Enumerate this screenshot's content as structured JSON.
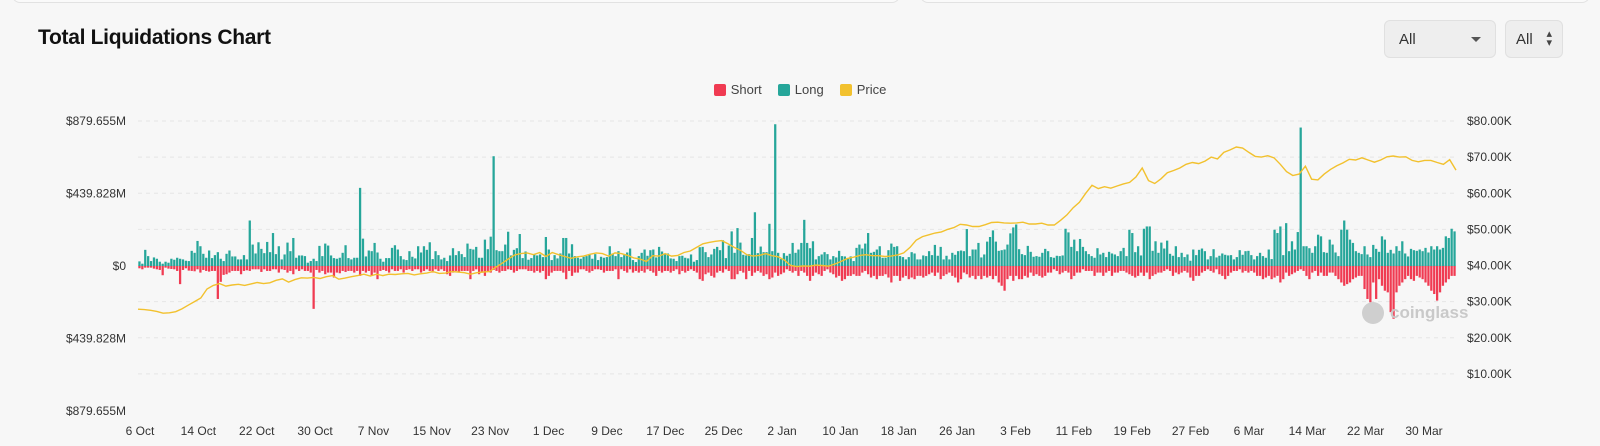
{
  "title": "Total Liquidations Chart",
  "controls": {
    "time_range": "All",
    "unit": "All"
  },
  "legend": [
    {
      "name": "Short",
      "color": "#f03b52"
    },
    {
      "name": "Long",
      "color": "#26a69a"
    },
    {
      "name": "Price",
      "color": "#f2c12e"
    }
  ],
  "watermark": "coinglass",
  "chart_data": {
    "type": "bar",
    "title": "Total Liquidations Chart",
    "left_axis": {
      "range": [
        -879.655,
        879.655
      ],
      "ticks": [
        {
          "value": 879.655,
          "label": "$879.655M"
        },
        {
          "value": 439.828,
          "label": "$439.828M"
        },
        {
          "value": 0,
          "label": "$0"
        },
        {
          "value": -439.828,
          "label": "$439.828M"
        },
        {
          "value": -879.655,
          "label": "$879.655M"
        }
      ]
    },
    "right_axis": {
      "range": [
        0,
        80
      ],
      "ticks": [
        {
          "value": 80,
          "label": "$80.00K"
        },
        {
          "value": 70,
          "label": "$70.00K"
        },
        {
          "value": 60,
          "label": "$60.00K"
        },
        {
          "value": 50,
          "label": "$50.00K"
        },
        {
          "value": 40,
          "label": "$40.00K"
        },
        {
          "value": 30,
          "label": "$30.00K"
        },
        {
          "value": 20,
          "label": "$20.00K"
        },
        {
          "value": 10,
          "label": "$10.00K"
        }
      ]
    },
    "x_tick_labels": [
      "6 Oct",
      "14 Oct",
      "22 Oct",
      "30 Oct",
      "7 Nov",
      "15 Nov",
      "23 Nov",
      "1 Dec",
      "9 Dec",
      "17 Dec",
      "25 Dec",
      "2 Jan",
      "10 Jan",
      "18 Jan",
      "26 Jan",
      "3 Feb",
      "11 Feb",
      "19 Feb",
      "27 Feb",
      "6 Mar",
      "14 Mar",
      "22 Mar",
      "30 Mar"
    ],
    "series": [
      {
        "name": "Long",
        "color": "#26a69a",
        "values": [
          28,
          14,
          98,
          60,
          30,
          52,
          44,
          26,
          14,
          26,
          20,
          44,
          38,
          50,
          44,
          40,
          32,
          30,
          92,
          80,
          152,
          120,
          74,
          50,
          94,
          48,
          66,
          84,
          44,
          30,
          74,
          94,
          58,
          58,
          40,
          40,
          66,
          40,
          276,
          130,
          76,
          144,
          104,
          78,
          146,
          84,
          200,
          72,
          120,
          40,
          70,
          142,
          90,
          170,
          50,
          64,
          64,
          60,
          20,
          30,
          44,
          30,
          122,
          60,
          136,
          124,
          64,
          48,
          44,
          50,
          80,
          126,
          48,
          40,
          50,
          50,
          474,
          166,
          58,
          94,
          90,
          140,
          82,
          44,
          26,
          48,
          48,
          110,
          126,
          100,
          60,
          40,
          36,
          90,
          56,
          46,
          120,
          82,
          120,
          98,
          144,
          42,
          90,
          66,
          40,
          50,
          30,
          64,
          108,
          66,
          90,
          72,
          54,
          136,
          104,
          100,
          116,
          50,
          50,
          160,
          102,
          178,
          666,
          96,
          90,
          90,
          130,
          208,
          64,
          98,
          108,
          194,
          48,
          88,
          38,
          48,
          72,
          64,
          70,
          54,
          176,
          100,
          36,
          66,
          46,
          76,
          170,
          170,
          76,
          132,
          60,
          50,
          44,
          56,
          60,
          70,
          44,
          72,
          36,
          56,
          50,
          54,
          120,
          76,
          60,
          90,
          54,
          66,
          82,
          106,
          36,
          24,
          60,
          80,
          100,
          62,
          96,
          100,
          52,
          116,
          88,
          70,
          76,
          46,
          44,
          30,
          60,
          62,
          50,
          46,
          70,
          26,
          36,
          114,
          116,
          84,
          54,
          70,
          104,
          116,
          96,
          156,
          48,
          124,
          210,
          80,
          230,
          142,
          68,
          64,
          72,
          170,
          326,
          78,
          118,
          84,
          84,
          256,
          90,
          860,
          80,
          42,
          78,
          62,
          74,
          140,
          80,
          100,
          140,
          280,
          140,
          108,
          150,
          40,
          60,
          70,
          84,
          72,
          40,
          60,
          52,
          92,
          60,
          58,
          44,
          58,
          30,
          110,
          130,
          106,
          136,
          200,
          80,
          86,
          100,
          120,
          50,
          50,
          96,
          136,
          116,
          120,
          60,
          54,
          40,
          54,
          84,
          76,
          40,
          40,
          64,
          60,
          90,
          66,
          128,
          62,
          116,
          40,
          62,
          40,
          80,
          68,
          90,
          94,
          90,
          224,
          60,
          100,
          100,
          140,
          52,
          70,
          148,
          176,
          216,
          148,
          92,
          96,
          100,
          130,
          198,
          234,
          252,
          102,
          72,
          66,
          122,
          86,
          56,
          60,
          56,
          80,
          104,
          90,
          54,
          50,
          62,
          60,
          64,
          226,
          204,
          116,
          160,
          90,
          164,
          116,
          90,
          72,
          60,
          50,
          108,
          70,
          80,
          54,
          86,
          76,
          70,
          60,
          90,
          110,
          60,
          220,
          200,
          84,
          120,
          64,
          226,
          240,
          240,
          92,
          150,
          80,
          142,
          106,
          154,
          74,
          62,
          120,
          54,
          80,
          54,
          70,
          32,
          100,
          66,
          98,
          106,
          90,
          40,
          60,
          102,
          52,
          62,
          76,
          68,
          64,
          66,
          40,
          54,
          96,
          68,
          90,
          92,
          66,
          40,
          60,
          80,
          60,
          50,
          100,
          42,
          220,
          200,
          240,
          66,
          260,
          90,
          150,
          100,
          206,
          840,
          120,
          120,
          108,
          80,
          120,
          190,
          180,
          84,
          80,
          160,
          130,
          82,
          60,
          220,
          276,
          220,
          160,
          140,
          90,
          80,
          72,
          120,
          70,
          54,
          128,
          104,
          86,
          180,
          160,
          80,
          98,
          76,
          120,
          92,
          150,
          76,
          58,
          104,
          96,
          92,
          100,
          90,
          110,
          82,
          120,
          100,
          120,
          100,
          110,
          180,
          170,
          226,
          210
        ]
      },
      {
        "name": "Short",
        "color": "#f03b52",
        "values": [
          -14,
          -20,
          -10,
          -10,
          -10,
          -16,
          -20,
          -24,
          -56,
          -10,
          -16,
          -18,
          -20,
          -30,
          -110,
          -24,
          -14,
          -28,
          -30,
          -32,
          -20,
          -40,
          -24,
          -30,
          -34,
          -30,
          -30,
          -200,
          -96,
          -54,
          -50,
          -40,
          -30,
          -30,
          -30,
          -50,
          -30,
          -26,
          -30,
          -20,
          -20,
          -20,
          -36,
          -20,
          -30,
          -30,
          -20,
          -20,
          -40,
          -20,
          -24,
          -40,
          -30,
          -50,
          -20,
          -30,
          -20,
          -30,
          -30,
          -40,
          -260,
          -24,
          -40,
          -30,
          -50,
          -40,
          -40,
          -70,
          -40,
          -44,
          -30,
          -36,
          -30,
          -30,
          -40,
          -30,
          -60,
          -30,
          -40,
          -30,
          -60,
          -40,
          -80,
          -30,
          -24,
          -30,
          -40,
          -20,
          -30,
          -30,
          -20,
          -40,
          -24,
          -20,
          -30,
          -20,
          -20,
          -40,
          -30,
          -20,
          -30,
          -40,
          -20,
          -30,
          -20,
          -30,
          -50,
          -60,
          -40,
          -30,
          -40,
          -30,
          -30,
          -30,
          -80,
          -30,
          -20,
          -50,
          -40,
          -60,
          -30,
          -40,
          -24,
          -30,
          -40,
          -30,
          -30,
          -20,
          -24,
          -40,
          -30,
          -20,
          -20,
          -20,
          -30,
          -30,
          -40,
          -30,
          -40,
          -30,
          -80,
          -60,
          -40,
          -30,
          -30,
          -30,
          -40,
          -80,
          -30,
          -60,
          -40,
          -40,
          -20,
          -20,
          -30,
          -40,
          -30,
          -20,
          -20,
          -24,
          -40,
          -30,
          -30,
          -30,
          -20,
          -80,
          -20,
          -30,
          -40,
          -20,
          -40,
          -30,
          -40,
          -30,
          -40,
          -20,
          -30,
          -40,
          -60,
          -30,
          -40,
          -30,
          -30,
          -40,
          -30,
          -20,
          -50,
          -30,
          -40,
          -30,
          -20,
          -30,
          -40,
          -80,
          -90,
          -50,
          -40,
          -60,
          -70,
          -40,
          -30,
          -40,
          -20,
          -30,
          -80,
          -80,
          -50,
          -30,
          -40,
          -80,
          -30,
          -60,
          -40,
          -30,
          -40,
          -60,
          -50,
          -80,
          -70,
          -40,
          -60,
          -50,
          -40,
          -20,
          -30,
          -40,
          -30,
          -60,
          -30,
          -40,
          -60,
          -90,
          -60,
          -40,
          -50,
          -60,
          -30,
          -20,
          -40,
          -50,
          -70,
          -60,
          -90,
          -80,
          -60,
          -60,
          -50,
          -60,
          -60,
          -40,
          -30,
          -50,
          -70,
          -60,
          -80,
          -60,
          -60,
          -50,
          -70,
          -100,
          -60,
          -60,
          -90,
          -70,
          -60,
          -80,
          -70,
          -80,
          -60,
          -60,
          -70,
          -60,
          -50,
          -40,
          -60,
          -40,
          -80,
          -60,
          -50,
          -40,
          -60,
          -70,
          -100,
          -80,
          -40,
          -50,
          -70,
          -60,
          -80,
          -60,
          -80,
          -60,
          -70,
          -60,
          -80,
          -60,
          -100,
          -120,
          -150,
          -80,
          -60,
          -90,
          -60,
          -80,
          -80,
          -60,
          -70,
          -40,
          -60,
          -50,
          -60,
          -70,
          -60,
          -40,
          -40,
          -20,
          -30,
          -50,
          -40,
          -30,
          -40,
          -80,
          -60,
          -40,
          -40,
          -20,
          -30,
          -30,
          -30,
          -60,
          -40,
          -40,
          -60,
          -40,
          -30,
          -60,
          -40,
          -40,
          -30,
          -30,
          -40,
          -50,
          -60,
          -70,
          -60,
          -40,
          -60,
          -40,
          -80,
          -60,
          -50,
          -40,
          -40,
          -30,
          -20,
          -30,
          -60,
          -40,
          -50,
          -40,
          -30,
          -40,
          -70,
          -90,
          -60,
          -60,
          -40,
          -30,
          -20,
          -30,
          -40,
          -20,
          -50,
          -60,
          -80,
          -60,
          -40,
          -30,
          -30,
          -20,
          -40,
          -30,
          -40,
          -30,
          -40,
          -60,
          -60,
          -80,
          -70,
          -60,
          -80,
          -70,
          -60,
          -100,
          -80,
          -40,
          -60,
          -50,
          -40,
          -30,
          -20,
          -30,
          -60,
          -80,
          -40,
          -30,
          -60,
          -40,
          -60,
          -60,
          -40,
          -40,
          -60,
          -80,
          -100,
          -120,
          -110,
          -100,
          -80,
          -70,
          -60,
          -60,
          -140,
          -200,
          -220,
          -100,
          -200,
          -80,
          -120,
          -150,
          -160,
          -280,
          -320,
          -160,
          -120,
          -100,
          -80,
          -60,
          -80,
          -90,
          -60,
          -70,
          -80,
          -100,
          -120,
          -150,
          -170,
          -210,
          -160,
          -120,
          -100,
          -80,
          -60,
          -60,
          -70,
          -80,
          -90,
          -70,
          -60,
          -80,
          -100,
          -80,
          -60,
          -40,
          -60,
          -80,
          -40,
          -50,
          -60,
          -40,
          -30,
          -50,
          -60,
          -40
        ]
      },
      {
        "name": "Price",
        "color": "#f2c12e",
        "values": [
          27.9,
          27.8,
          27.6,
          27.3,
          26.8,
          26.9,
          27.2,
          28.0,
          29.0,
          30.0,
          31.0,
          33.5,
          34.5,
          35.0,
          34.3,
          34.6,
          34.8,
          34.5,
          34.9,
          35.3,
          35.0,
          35.2,
          35.9,
          36.3,
          35.4,
          36.1,
          36.6,
          36.5,
          36.7,
          36.4,
          36.9,
          37.2,
          36.2,
          36.5,
          36.9,
          37.2,
          37.6,
          37.1,
          37.6,
          37.2,
          37.6,
          37.5,
          37.7,
          37.8,
          37.4,
          37.7,
          37.9,
          38.3,
          37.8,
          37.9,
          38.3,
          38.2,
          38.0,
          37.6,
          38.0,
          38.2,
          38.3,
          39.5,
          40.6,
          41.8,
          42.9,
          43.3,
          43.5,
          43.0,
          43.6,
          42.5,
          43.6,
          43.0,
          42.5,
          42.0,
          42.4,
          42.6,
          43.1,
          43.5,
          43.3,
          42.6,
          43.5,
          43.3,
          42.8,
          42.1,
          41.8,
          41.1,
          42.7,
          42.6,
          43.3,
          42.6,
          42.8,
          43.6,
          44.0,
          45.0,
          46.0,
          46.4,
          46.7,
          46.9,
          46.0,
          45.0,
          44.2,
          43.0,
          42.6,
          42.8,
          43.3,
          42.7,
          42.4,
          41.5,
          40.0,
          39.7,
          39.9,
          39.8,
          40.1,
          40.0,
          39.8,
          40.4,
          41.1,
          41.9,
          42.3,
          42.8,
          43.0,
          42.7,
          42.7,
          42.5,
          42.6,
          42.9,
          43.5,
          45.0,
          47.0,
          48.0,
          48.5,
          49.0,
          49.3,
          50.0,
          50.5,
          51.4,
          51.2,
          50.8,
          50.8,
          51.3,
          51.9,
          52.0,
          51.8,
          51.7,
          51.8,
          52.0,
          51.5,
          51.5,
          51.7,
          51.2,
          51.2,
          52.5,
          54.0,
          56.0,
          57.5,
          60.0,
          62.2,
          61.3,
          61.8,
          61.4,
          62.0,
          62.6,
          63.0,
          64.5,
          67.0,
          63.5,
          62.7,
          64.0,
          65.7,
          66.3,
          67.0,
          68.0,
          68.5,
          68.2,
          68.9,
          70.0,
          69.5,
          71.3,
          72.0,
          72.8,
          72.5,
          71.3,
          70.2,
          70.0,
          70.4,
          69.8,
          68.0,
          66.0,
          64.9,
          65.3,
          67.5,
          63.9,
          63.7,
          65.3,
          66.6,
          67.6,
          68.4,
          69.4,
          69.2,
          69.8,
          69.2,
          68.6,
          69.2,
          70.1,
          70.3,
          70.0,
          70.1,
          69.1,
          68.7,
          69.1,
          69.1,
          68.5,
          68.0,
          69.3,
          66.4
        ]
      }
    ]
  }
}
